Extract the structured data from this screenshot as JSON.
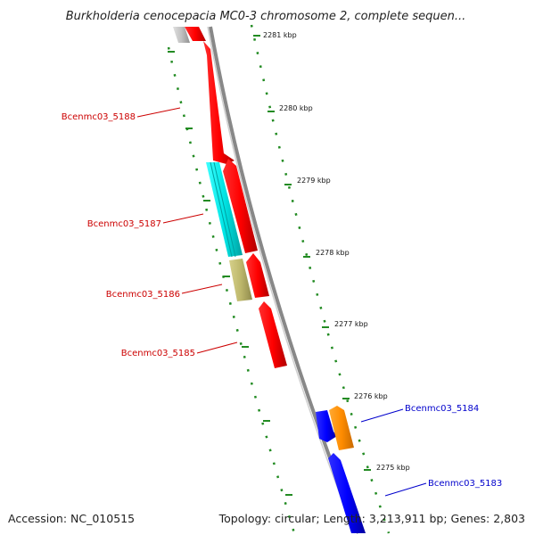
{
  "title": "Burkholderia cenocepacia MC0-3 chromosome 2, complete sequen...",
  "footer": {
    "accession": "Accession: NC_010515",
    "stats": "Topology: circular; Length: 3,213,911 bp; Genes: 2,803"
  },
  "axis_ticks": [
    "2281 kbp",
    "2280 kbp",
    "2279 kbp",
    "2278 kbp",
    "2277 kbp",
    "2276 kbp",
    "2275 kbp"
  ],
  "gene_labels": {
    "g5188": "Bcenmc03_5188",
    "g5187": "Bcenmc03_5187",
    "g5186": "Bcenmc03_5186",
    "g5185": "Bcenmc03_5185",
    "g5184": "Bcenmc03_5184",
    "g5183": "Bcenmc03_5183"
  },
  "colors": {
    "reverse_cds": "#ff0000",
    "forward_cds": "#0000ff",
    "highlight_cyan": "#00e5e5",
    "highlight_khaki": "#bdb76b",
    "highlight_orange": "#ff8c00",
    "other_feature": "#c0c0c0",
    "backbone": "#888888",
    "ticks": "#228b22",
    "reverse_label": "#cc0000",
    "forward_label": "#0000cc"
  }
}
